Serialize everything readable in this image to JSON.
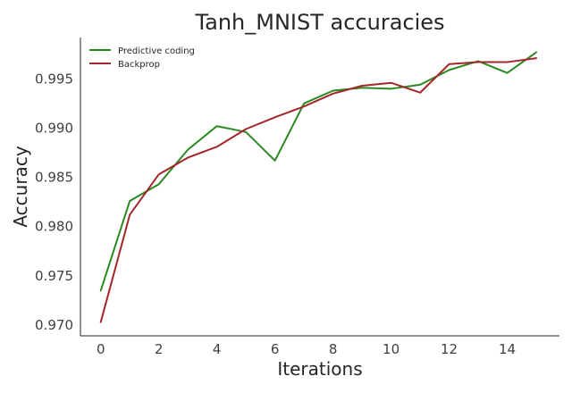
{
  "chart_data": {
    "type": "line",
    "title": "Tanh_MNIST accuracies",
    "xlabel": "Iterations",
    "ylabel": "Accuracy",
    "xlim": [
      -0.7,
      15.8
    ],
    "ylim": [
      0.9689,
      0.9992
    ],
    "x": [
      0,
      1,
      2,
      3,
      4,
      5,
      6,
      7,
      8,
      9,
      10,
      11,
      12,
      13,
      14,
      15
    ],
    "xticks": [
      "0",
      "2",
      "4",
      "6",
      "8",
      "10",
      "12",
      "14"
    ],
    "yticks": [
      "0.970",
      "0.975",
      "0.980",
      "0.985",
      "0.990",
      "0.995"
    ],
    "grid": false,
    "legend_position": "top-left",
    "series": [
      {
        "name": "Predictive coding",
        "color": "#2a8a22",
        "values": [
          0.9735,
          0.9826,
          0.9843,
          0.9878,
          0.9902,
          0.9896,
          0.9867,
          0.9925,
          0.9938,
          0.9941,
          0.994,
          0.9944,
          0.9959,
          0.9968,
          0.9956,
          0.9977
        ]
      },
      {
        "name": "Backprop",
        "color": "#a3262a",
        "values": [
          0.9703,
          0.9812,
          0.9853,
          0.987,
          0.9881,
          0.9899,
          0.9911,
          0.9922,
          0.9935,
          0.9943,
          0.9946,
          0.9936,
          0.9965,
          0.9967,
          0.9967,
          0.9971
        ]
      }
    ]
  }
}
